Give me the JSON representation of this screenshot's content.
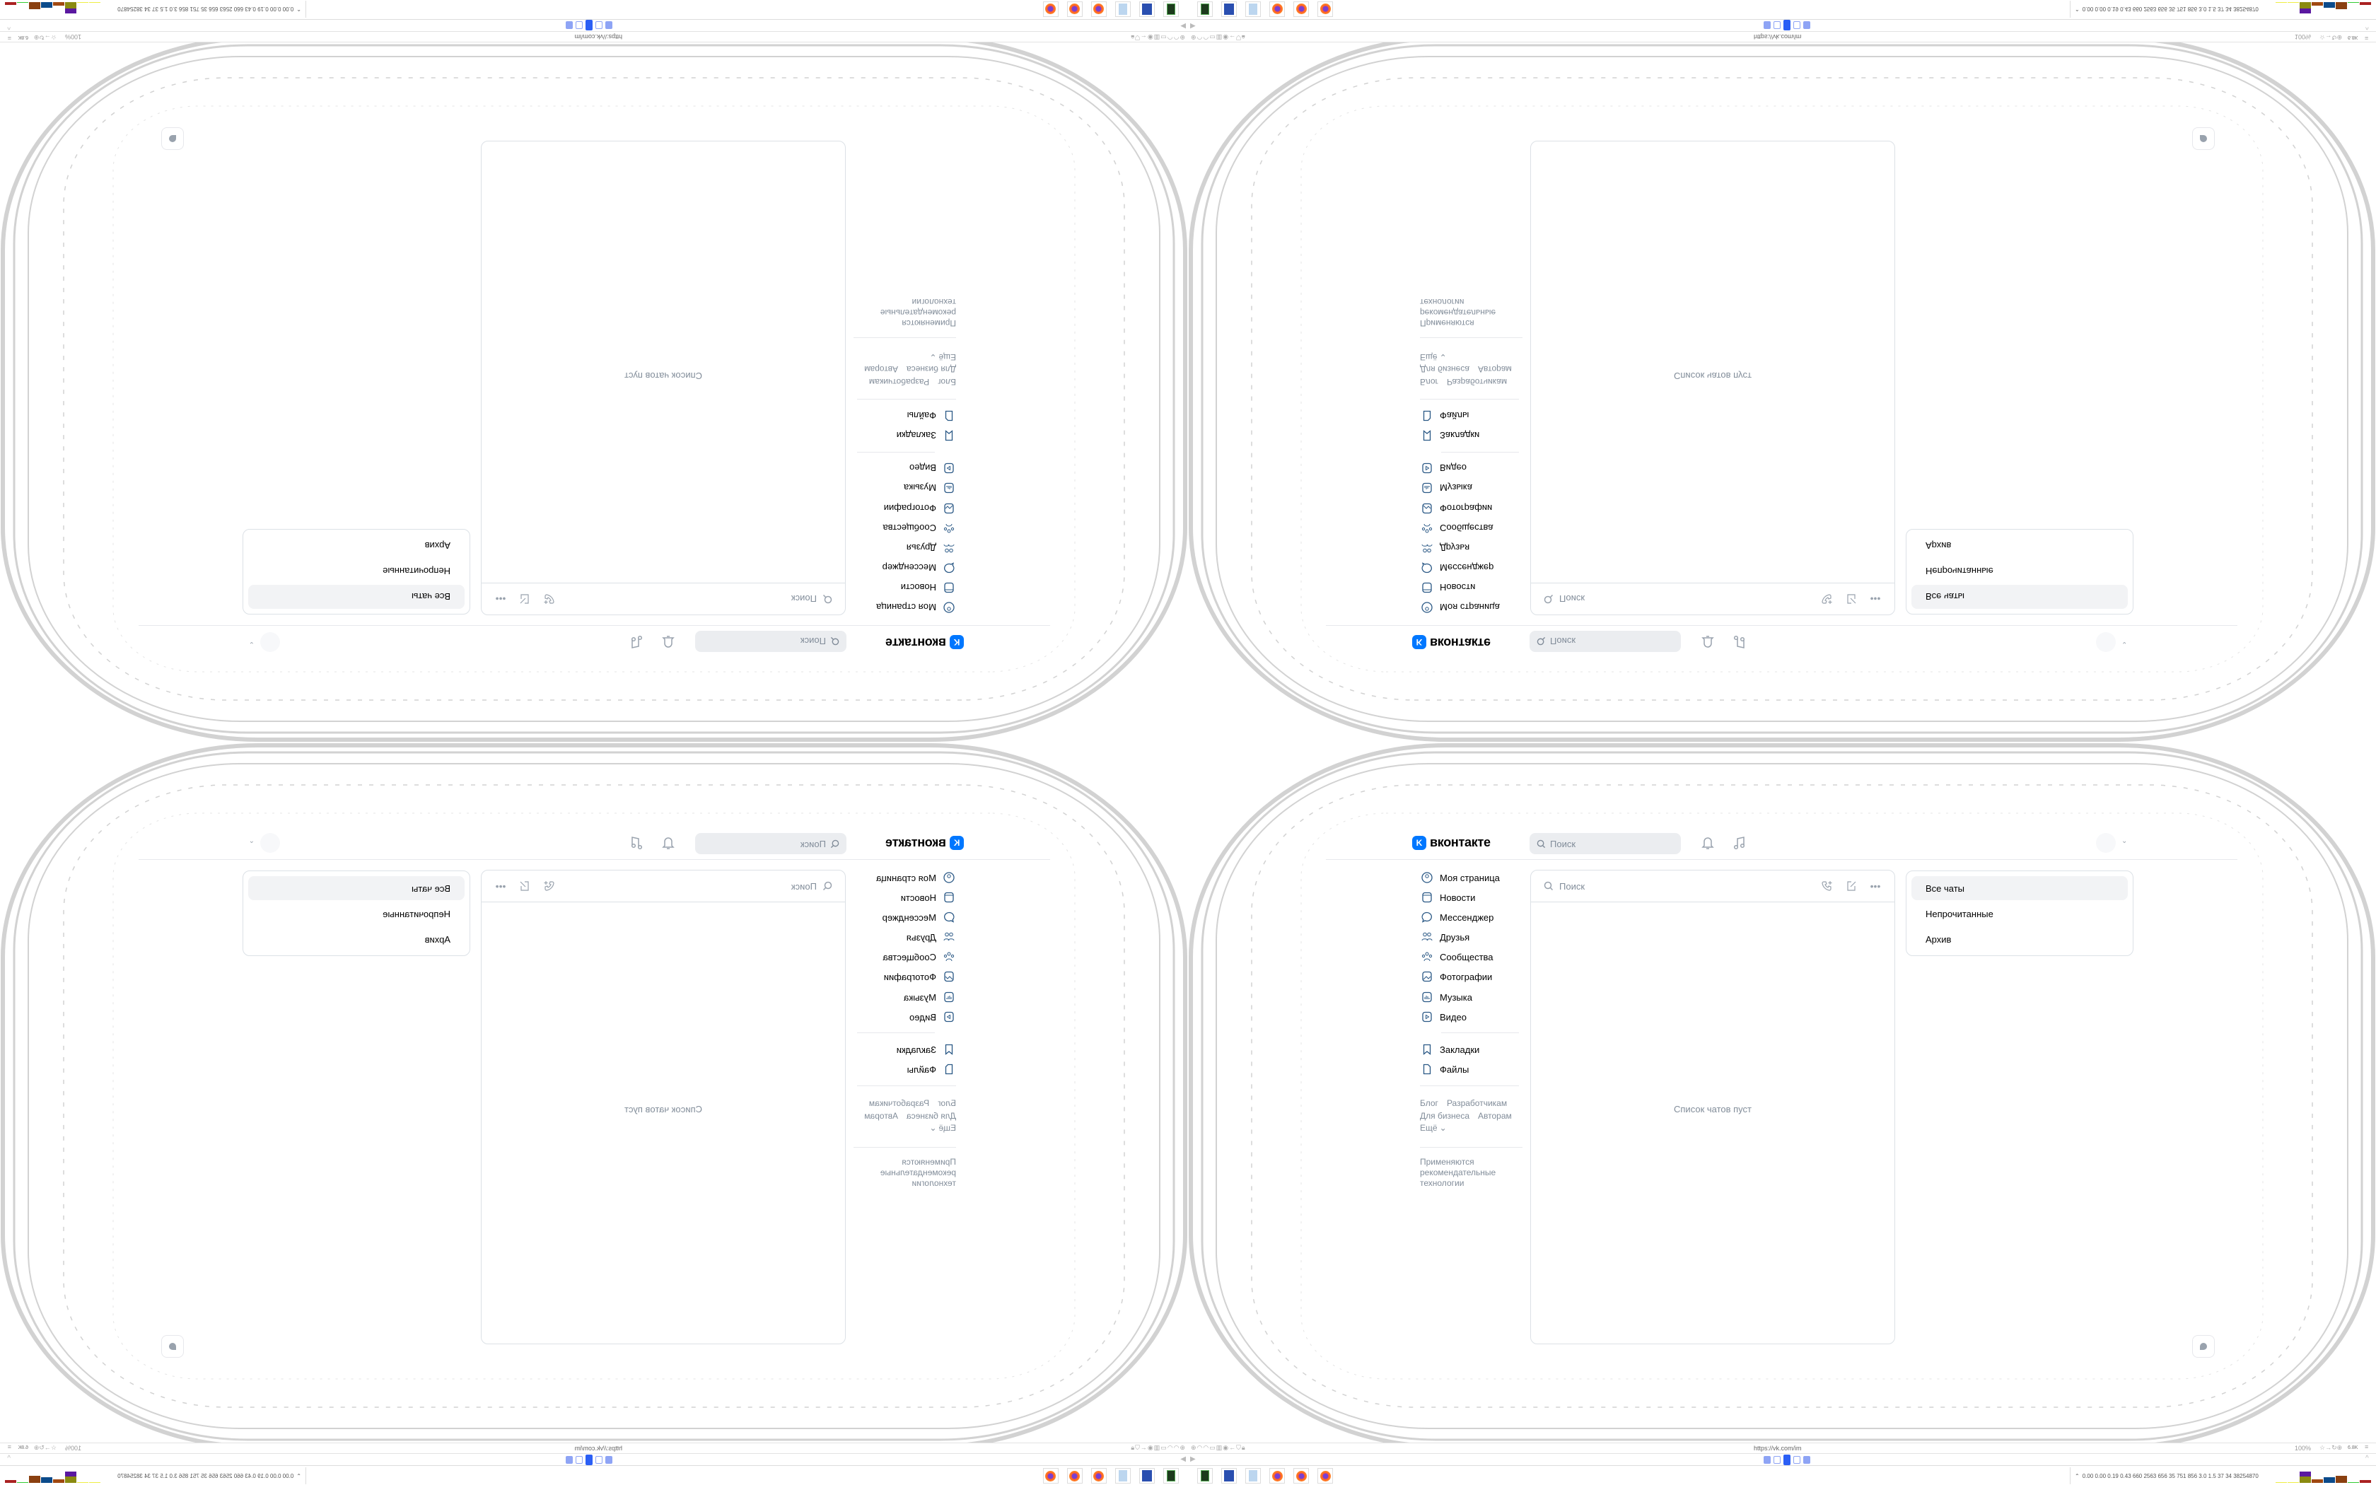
{
  "brand": {
    "logo_letter": "K",
    "name": "вконтакте",
    "accent": "#0077ff"
  },
  "header": {
    "search_placeholder": "Поиск",
    "icons": [
      "bell-icon",
      "music-icon"
    ]
  },
  "sidebar": {
    "items": [
      {
        "label": "Моя страница",
        "icon": "user-circle-icon"
      },
      {
        "label": "Новости",
        "icon": "news-icon"
      },
      {
        "label": "Мессенджер",
        "icon": "message-icon"
      },
      {
        "label": "Друзья",
        "icon": "friends-icon"
      },
      {
        "label": "Сообщества",
        "icon": "communities-icon"
      },
      {
        "label": "Фотографии",
        "icon": "photo-icon"
      },
      {
        "label": "Музыка",
        "icon": "music-icon"
      },
      {
        "label": "Видео",
        "icon": "video-icon"
      },
      {
        "label": "Закладки",
        "icon": "bookmark-icon"
      },
      {
        "label": "Файлы",
        "icon": "file-icon"
      }
    ],
    "footer_links": [
      "Блог",
      "Разработчикам",
      "Для бизнеса",
      "Авторам",
      "Ещё"
    ],
    "recommend_note": [
      "Применяются",
      "рекомендательные",
      "технологии"
    ]
  },
  "messenger": {
    "search_placeholder": "Поиск",
    "empty_text": "Список чатов пуст",
    "filters": [
      "Все чаты",
      "Непрочитанные",
      "Архив"
    ],
    "active_filter": "Все чаты"
  },
  "browser": {
    "url": "https://vk.com/im",
    "zoom": "100%",
    "badge": "6.8K"
  },
  "taskbar": {
    "apps": [
      "terminal-icon",
      "save-64-icon",
      "notepad-icon",
      "firefox-icon",
      "firefox-icon",
      "firefox-icon"
    ],
    "tray_stats": "0.00 0.00 0.19 0.43 660 2563 656 35 751 856 3.0 1.5 37 34 38254870"
  }
}
